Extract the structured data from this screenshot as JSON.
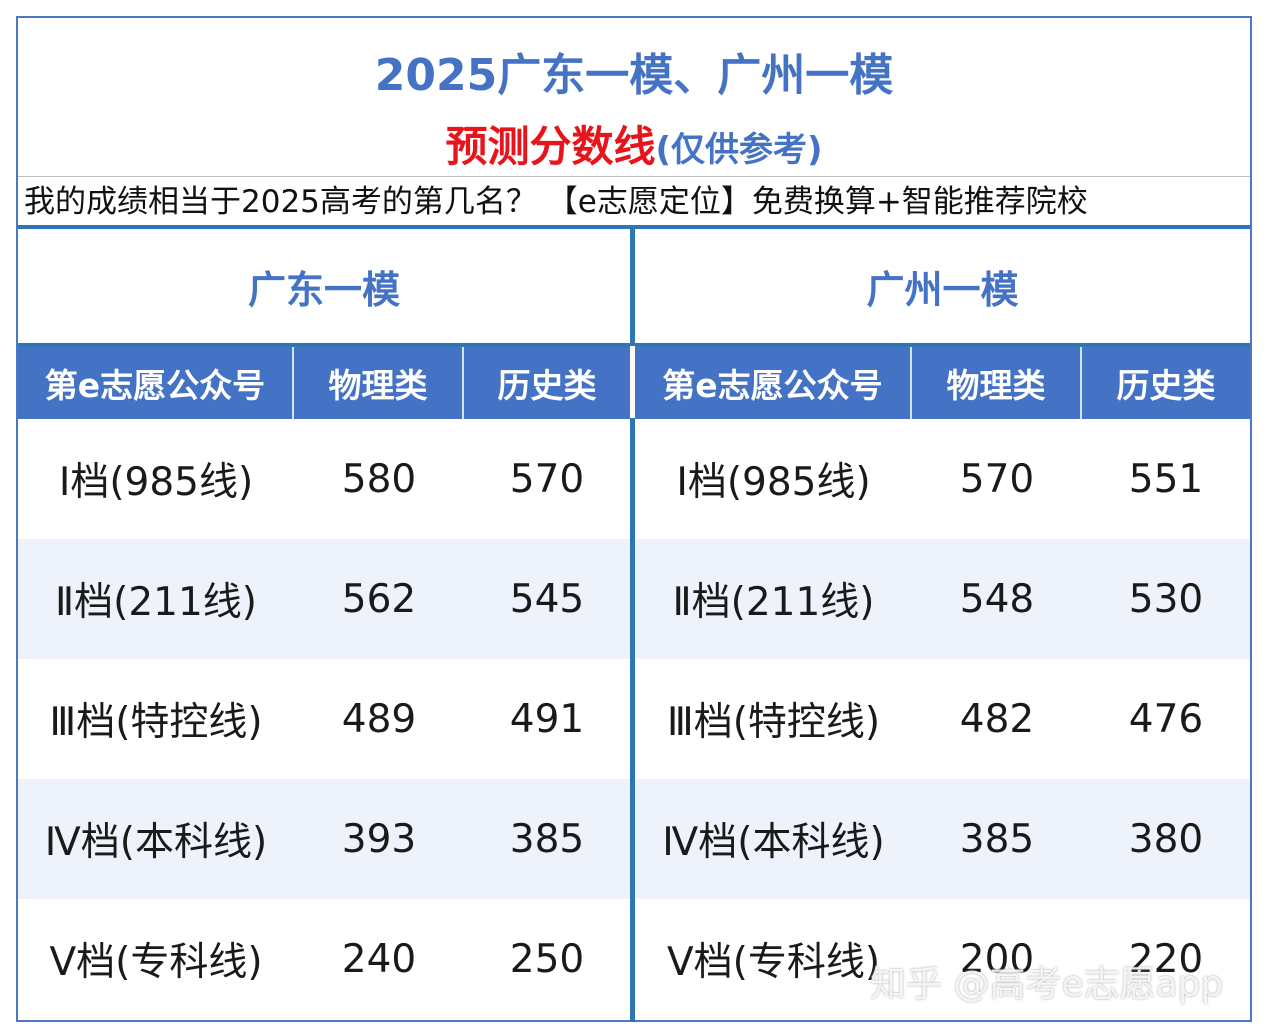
{
  "title": {
    "line1": "2025广东一模、广州一模",
    "line2_main": "预测分数线",
    "line2_note": "(仅供参考)"
  },
  "promo_text": "我的成绩相当于2025高考的第几名？ 【e志愿定位】免费换算+智能推荐院校",
  "groups": [
    {
      "name": "广东一模",
      "headers": [
        "第e志愿公众号",
        "物理类",
        "历史类"
      ],
      "rows": [
        [
          "Ⅰ档(985线)",
          "580",
          "570"
        ],
        [
          "Ⅱ档(211线)",
          "562",
          "545"
        ],
        [
          "Ⅲ档(特控线)",
          "489",
          "491"
        ],
        [
          "Ⅳ档(本科线)",
          "393",
          "385"
        ],
        [
          "Ⅴ档(专科线)",
          "240",
          "250"
        ]
      ]
    },
    {
      "name": "广州一模",
      "headers": [
        "第e志愿公众号",
        "物理类",
        "历史类"
      ],
      "rows": [
        [
          "Ⅰ档(985线)",
          "570",
          "551"
        ],
        [
          "Ⅱ档(211线)",
          "548",
          "530"
        ],
        [
          "Ⅲ档(特控线)",
          "482",
          "476"
        ],
        [
          "Ⅳ档(本科线)",
          "385",
          "380"
        ],
        [
          "Ⅴ档(专科线)",
          "200",
          "220"
        ]
      ]
    }
  ],
  "watermark": "知乎 @高考e志愿app",
  "colors": {
    "accent_blue": "#4472c4",
    "border_blue": "#2e75b6",
    "title_red": "#e8141b",
    "alt_row": "#edf2fb"
  }
}
